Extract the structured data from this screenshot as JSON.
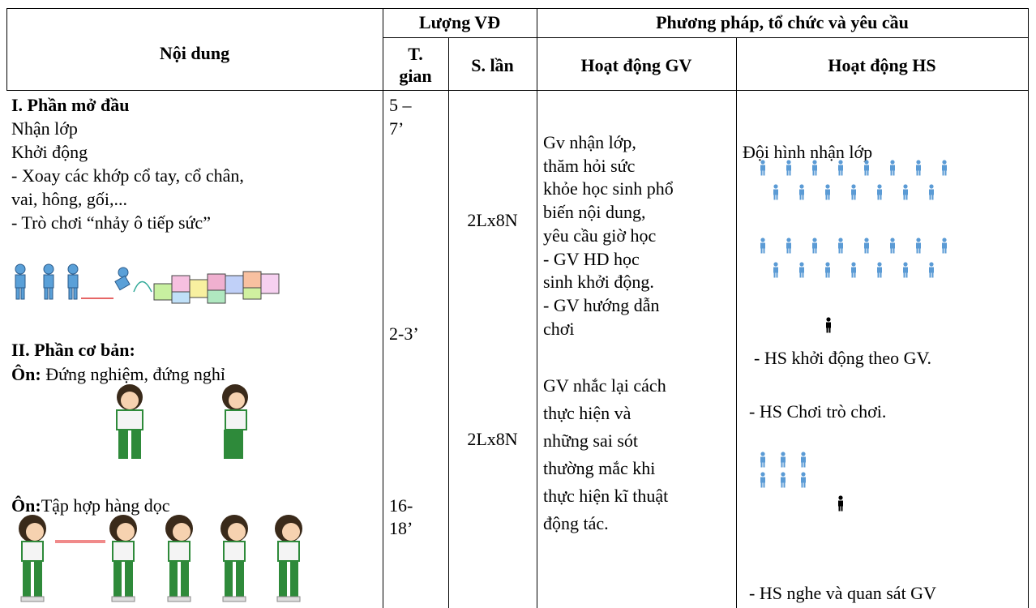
{
  "header": {
    "noi_dung": "Nội dung",
    "luong_vd": "Lượng VĐ",
    "phuong_phap": "Phương pháp, tổ chức và yêu cầu",
    "t_gian": [
      "T.",
      "gian"
    ],
    "s_lan": "S. lần",
    "hd_gv": "Hoạt động GV",
    "hd_hs": "Hoạt động HS"
  },
  "noi_dung": {
    "part1_title": "I. Phần mở đầu",
    "part1_lines": [
      "Nhận lớp",
      "Khởi động",
      "- Xoay các khớp cổ tay, cổ chân,",
      "vai, hông, gối,...",
      "- Trò chơi “nhảy ô tiếp sức”"
    ],
    "part2_title": "II. Phần cơ bản:",
    "review1": {
      "label": "Ôn:",
      "text": " Đứng nghiệm, đứng nghỉ"
    },
    "review2": {
      "label": "Ôn:",
      "text": "Tập hợp hàng dọc"
    }
  },
  "t_gian": {
    "part1": [
      "5 –",
      "7’"
    ],
    "warmup": "2-3’",
    "part2": [
      "16-",
      "18’"
    ]
  },
  "s_lan": [
    "2Lx8N",
    "2Lx8N"
  ],
  "hd_gv": {
    "para1": [
      "Gv nhận lớp,",
      "thăm hỏi sức",
      "khỏe học sinh phổ",
      "biến nội dung,",
      "yêu cầu giờ học",
      "- GV HD học",
      "sinh khởi động.",
      "- GV hướng dẫn",
      "chơi"
    ],
    "para2": [
      "GV nhắc lại cách",
      "thực hiện và",
      "những sai sót",
      "thường mắc khi",
      "thực hiện kĩ thuật",
      "động tác."
    ]
  },
  "hd_hs": {
    "formation": "Đội hình nhận lớp",
    "warmup": "- HS khởi động theo GV.",
    "game": "- HS Chơi trò chơi.",
    "listen": "- HS nghe và quan sát GV"
  }
}
